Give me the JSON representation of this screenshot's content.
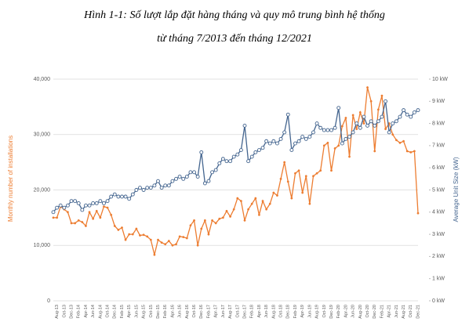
{
  "chart_data": {
    "type": "line",
    "title": "Hình 1-1: Số lượt lắp đặt hàng tháng và quy mô trung bình hệ thống",
    "subtitle": "từ tháng 7/2013 đến tháng 12/2021",
    "y_label": "Monthly number of installations",
    "y2_label": "Average Unit Size (kW)",
    "categories": [
      null,
      "Aug-13",
      null,
      "Oct-13",
      null,
      "Dec-13",
      null,
      "Feb-14",
      null,
      "Apr-14",
      null,
      "Jun-14",
      null,
      "Aug-14",
      null,
      "Oct-14",
      null,
      "Dec-14",
      null,
      "Feb-15",
      null,
      "Apr-15",
      null,
      "Jun-15",
      null,
      "Aug-15",
      null,
      "Oct-15",
      null,
      "Dec-15",
      null,
      "Feb-16",
      null,
      "Apr-16",
      null,
      "Jun-16",
      null,
      "Aug-16",
      null,
      "Oct-16",
      null,
      "Dec-16",
      null,
      "Feb-17",
      null,
      "Apr-17",
      null,
      "Jun-17",
      null,
      "Aug-17",
      null,
      "Oct-17",
      null,
      "Dec-17",
      null,
      "Feb-18",
      null,
      "Apr-18",
      null,
      "Jun-18",
      null,
      "Aug-18",
      null,
      "Oct-18",
      null,
      "Dec-18",
      null,
      "Feb-19",
      null,
      "Apr-19",
      null,
      "Jun-19",
      null,
      "Aug-19",
      null,
      "Oct-19",
      null,
      "Dec-19",
      null,
      "Feb-20",
      null,
      "Apr-20",
      null,
      "Jun-20",
      null,
      "Aug-20",
      null,
      "Oct-20",
      null,
      "Dec-20",
      null,
      "Feb-21",
      null,
      "Apr-21",
      null,
      "Jun-21",
      null,
      "Aug-21",
      null,
      "Oct-21",
      null,
      "Dec-21"
    ],
    "series": [
      {
        "name": "Monthly number of installations",
        "color": "#ed7d31",
        "values": [
          15000,
          15000,
          17000,
          16500,
          16000,
          14000,
          14000,
          14500,
          14200,
          13500,
          16000,
          14800,
          16200,
          15000,
          17000,
          16800,
          15500,
          13500,
          12800,
          13200,
          11000,
          12000,
          12000,
          13000,
          11800,
          11900,
          11600,
          11000,
          8300,
          11000,
          10500,
          10200,
          10800,
          10000,
          10200,
          11600,
          11500,
          11300,
          13600,
          14500,
          10000,
          13000,
          14500,
          12000,
          14500,
          14000,
          14800,
          15000,
          16200,
          15200,
          16500,
          18500,
          18000,
          14500,
          16500,
          17500,
          18500,
          15500,
          18000,
          16500,
          17500,
          19500,
          19000,
          22000,
          25000,
          21500,
          18500,
          23000,
          23500,
          19500,
          22500,
          17500,
          22500,
          23000,
          23500,
          28000,
          28500,
          23500,
          27500,
          28000,
          31500,
          33000,
          26000,
          33500,
          31000,
          34000,
          32000,
          38500,
          36000,
          27000,
          34500,
          37000,
          31000,
          32000,
          30000,
          29000,
          28500,
          28800,
          27000,
          26800,
          27000,
          15800
        ]
      },
      {
        "name": "Average Unit Size (kW)",
        "color": "#44658f",
        "axis": "y2",
        "values": [
          4.0,
          4.2,
          4.3,
          4.2,
          4.3,
          4.5,
          4.5,
          4.4,
          4.1,
          4.3,
          4.3,
          4.4,
          4.4,
          4.5,
          4.4,
          4.5,
          4.7,
          4.8,
          4.7,
          4.7,
          4.7,
          4.6,
          4.8,
          5.0,
          5.1,
          5.0,
          5.1,
          5.1,
          5.2,
          5.4,
          5.1,
          5.2,
          5.2,
          5.4,
          5.5,
          5.6,
          5.5,
          5.6,
          5.8,
          5.8,
          5.6,
          6.7,
          5.3,
          5.4,
          5.8,
          5.9,
          6.2,
          6.4,
          6.3,
          6.3,
          6.5,
          6.6,
          6.8,
          7.9,
          6.3,
          6.5,
          6.7,
          6.8,
          6.9,
          7.2,
          7.1,
          7.2,
          7.1,
          7.3,
          7.6,
          8.4,
          6.8,
          7.1,
          7.2,
          7.4,
          7.3,
          7.4,
          7.6,
          8.0,
          7.8,
          7.7,
          7.7,
          7.7,
          7.8,
          8.7,
          7.1,
          7.3,
          7.4,
          7.6,
          8.0,
          7.8,
          8.3,
          7.9,
          8.1,
          7.9,
          8.1,
          8.3,
          9.0,
          7.6,
          8.0,
          8.1,
          8.3,
          8.6,
          8.4,
          8.3,
          8.5,
          8.6
        ]
      }
    ],
    "ylim": [
      0,
      40000
    ],
    "yticks": [
      0,
      {
        "value": 10000,
        "label": "10,000"
      },
      {
        "value": 20000,
        "label": "20,000"
      },
      {
        "value": 30000,
        "label": "30,000"
      },
      {
        "value": 40000,
        "label": "40,000"
      }
    ],
    "y2lim": [
      0,
      10
    ],
    "y2ticks": [
      {
        "value": 0,
        "label": "0 kW"
      },
      {
        "value": 1,
        "label": "1 kW"
      },
      {
        "value": 2,
        "label": "2 kW"
      },
      {
        "value": 3,
        "label": "3 kW"
      },
      {
        "value": 4,
        "label": "4 kW"
      },
      {
        "value": 5,
        "label": "5 kW"
      },
      {
        "value": 6,
        "label": "6 kW"
      },
      {
        "value": 7,
        "label": "7 kW"
      },
      {
        "value": 8,
        "label": "8 kW"
      },
      {
        "value": 9,
        "label": "9 kW"
      },
      {
        "value": 10,
        "label": "10 kW"
      }
    ],
    "grid": true
  }
}
